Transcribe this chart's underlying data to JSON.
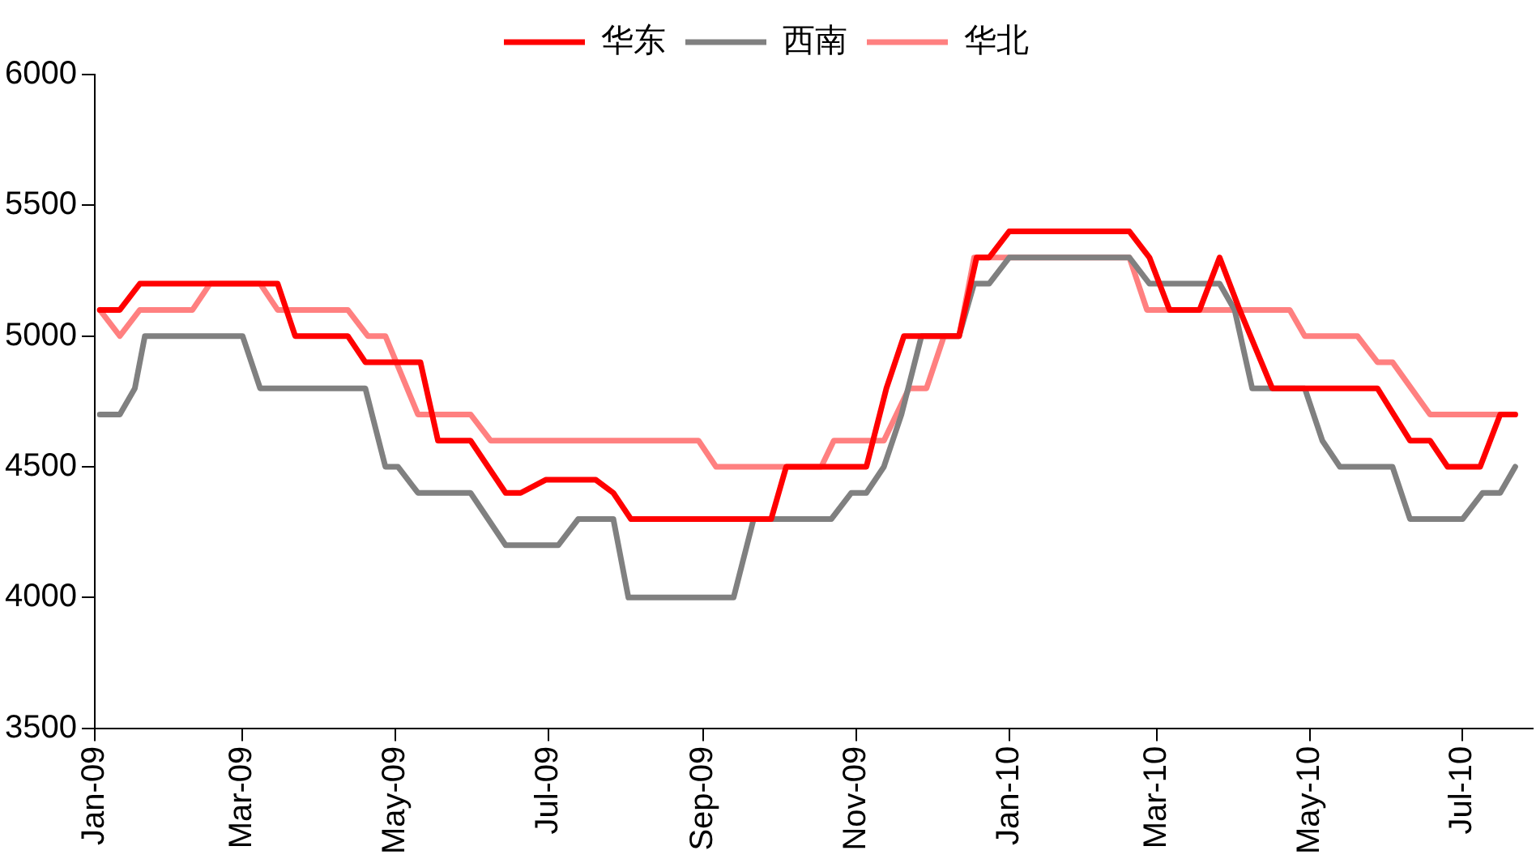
{
  "chart_data": {
    "type": "line",
    "ylim": [
      3500,
      6000
    ],
    "yticks": [
      3500,
      4000,
      4500,
      5000,
      5500,
      6000
    ],
    "xlim": [
      "2009-01-01",
      "2010-07-29"
    ],
    "xticks": [
      {
        "value": "2009-01-01",
        "label": "Jan-09"
      },
      {
        "value": "2009-03-01",
        "label": "Mar-09"
      },
      {
        "value": "2009-05-01",
        "label": "May-09"
      },
      {
        "value": "2009-07-01",
        "label": "Jul-09"
      },
      {
        "value": "2009-09-01",
        "label": "Sep-09"
      },
      {
        "value": "2009-11-01",
        "label": "Nov-09"
      },
      {
        "value": "2010-01-01",
        "label": "Jan-10"
      },
      {
        "value": "2010-03-01",
        "label": "Mar-10"
      },
      {
        "value": "2010-05-01",
        "label": "May-10"
      },
      {
        "value": "2010-07-01",
        "label": "Jul-10"
      }
    ],
    "grid": false,
    "legend": "top",
    "marker": "none",
    "line_style": "solid",
    "series": [
      {
        "name": "华东",
        "color": "#ff0000",
        "x": [
          "2009-01-03",
          "2009-01-11",
          "2009-01-19",
          "2009-03-15",
          "2009-03-22",
          "2009-04-12",
          "2009-04-19",
          "2009-05-11",
          "2009-05-18",
          "2009-05-31",
          "2009-06-07",
          "2009-06-14",
          "2009-06-20",
          "2009-06-30",
          "2009-07-20",
          "2009-07-27",
          "2009-08-03",
          "2009-09-28",
          "2009-10-04",
          "2009-11-05",
          "2009-11-13",
          "2009-11-20",
          "2009-12-12",
          "2009-12-19",
          "2009-12-24",
          "2010-01-01",
          "2010-02-18",
          "2010-02-26",
          "2010-03-06",
          "2010-03-18",
          "2010-03-26",
          "2010-04-03",
          "2010-04-16",
          "2010-05-28",
          "2010-06-10",
          "2010-06-18",
          "2010-06-25",
          "2010-07-08",
          "2010-07-16",
          "2010-07-22"
        ],
        "values": [
          5100,
          5100,
          5200,
          5200,
          5000,
          5000,
          4900,
          4900,
          4600,
          4600,
          4500,
          4400,
          4400,
          4450,
          4450,
          4400,
          4300,
          4300,
          4500,
          4500,
          4800,
          5000,
          5000,
          5300,
          5300,
          5400,
          5400,
          5300,
          5100,
          5100,
          5300,
          5100,
          4800,
          4800,
          4600,
          4600,
          4500,
          4500,
          4700,
          4700
        ]
      },
      {
        "name": "西南",
        "color": "#808080",
        "x": [
          "2009-01-03",
          "2009-01-11",
          "2009-01-17",
          "2009-01-21",
          "2009-03-01",
          "2009-03-08",
          "2009-04-19",
          "2009-04-27",
          "2009-05-02",
          "2009-05-10",
          "2009-05-31",
          "2009-06-07",
          "2009-06-14",
          "2009-07-05",
          "2009-07-13",
          "2009-07-27",
          "2009-08-02",
          "2009-09-13",
          "2009-09-21",
          "2009-10-22",
          "2009-10-30",
          "2009-11-05",
          "2009-11-12",
          "2009-11-19",
          "2009-11-27",
          "2009-12-12",
          "2009-12-18",
          "2009-12-24",
          "2010-01-01",
          "2010-02-18",
          "2010-02-26",
          "2010-03-26",
          "2010-04-01",
          "2010-04-08",
          "2010-04-29",
          "2010-05-06",
          "2010-05-13",
          "2010-06-03",
          "2010-06-10",
          "2010-07-01",
          "2010-07-09",
          "2010-07-16",
          "2010-07-22"
        ],
        "values": [
          4700,
          4700,
          4800,
          5000,
          5000,
          4800,
          4800,
          4500,
          4500,
          4400,
          4400,
          4300,
          4200,
          4200,
          4300,
          4300,
          4000,
          4000,
          4300,
          4300,
          4400,
          4400,
          4500,
          4700,
          5000,
          5000,
          5200,
          5200,
          5300,
          5300,
          5200,
          5200,
          5100,
          4800,
          4800,
          4600,
          4500,
          4500,
          4300,
          4300,
          4400,
          4400,
          4500
        ]
      },
      {
        "name": "华北",
        "color": "#ff8080",
        "x": [
          "2009-01-03",
          "2009-01-11",
          "2009-01-19",
          "2009-02-09",
          "2009-02-16",
          "2009-03-08",
          "2009-03-15",
          "2009-04-12",
          "2009-04-20",
          "2009-04-27",
          "2009-05-10",
          "2009-05-31",
          "2009-06-08",
          "2009-08-30",
          "2009-09-06",
          "2009-10-18",
          "2009-10-23",
          "2009-11-12",
          "2009-11-22",
          "2009-11-29",
          "2009-12-06",
          "2009-12-12",
          "2009-12-18",
          "2010-02-18",
          "2010-02-25",
          "2010-04-23",
          "2010-04-29",
          "2010-05-20",
          "2010-05-28",
          "2010-06-03",
          "2010-06-18",
          "2010-07-22"
        ],
        "values": [
          5100,
          5000,
          5100,
          5100,
          5200,
          5200,
          5100,
          5100,
          5000,
          5000,
          4700,
          4700,
          4600,
          4600,
          4500,
          4500,
          4600,
          4600,
          4800,
          4800,
          5000,
          5000,
          5300,
          5300,
          5100,
          5100,
          5000,
          5000,
          4900,
          4900,
          4700,
          4700
        ]
      }
    ]
  }
}
